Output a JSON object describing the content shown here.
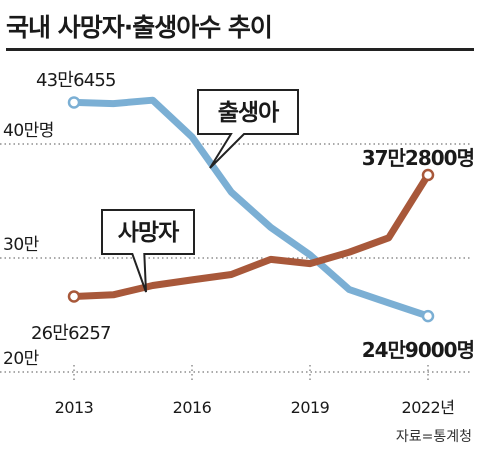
{
  "title": "국내 사망자·출생아수 추이",
  "source": "자료=통계청",
  "colors": {
    "births": "#7bafd4",
    "deaths": "#a8583a",
    "grid": "#555555",
    "text": "#1a1a1a"
  },
  "chart_data": {
    "type": "line",
    "title": "국내 사망자·출생아수 추이",
    "xlabel": "",
    "ylabel": "",
    "x": [
      2013,
      2014,
      2015,
      2016,
      2017,
      2018,
      2019,
      2020,
      2021,
      2022
    ],
    "xticks": [
      2013,
      2016,
      2019,
      2022
    ],
    "xtick_labels": [
      "2013",
      "2016",
      "2019",
      "2022년"
    ],
    "yticks": [
      200000,
      300000,
      400000
    ],
    "ytick_labels": [
      "20만",
      "30만",
      "40만명"
    ],
    "ylim": [
      185000,
      500000
    ],
    "grid": "horizontal dotted",
    "series": [
      {
        "name": "출생아",
        "values": [
          436455,
          435400,
          438400,
          406200,
          357800,
          326800,
          302700,
          272300,
          260600,
          249000
        ],
        "start_label": "43만6455",
        "end_label": "24만9000명"
      },
      {
        "name": "사망자",
        "values": [
          266257,
          267700,
          275900,
          280800,
          285500,
          298800,
          295100,
          305100,
          317700,
          372800
        ],
        "start_label": "26만6257",
        "end_label": "37만2800명"
      }
    ]
  }
}
